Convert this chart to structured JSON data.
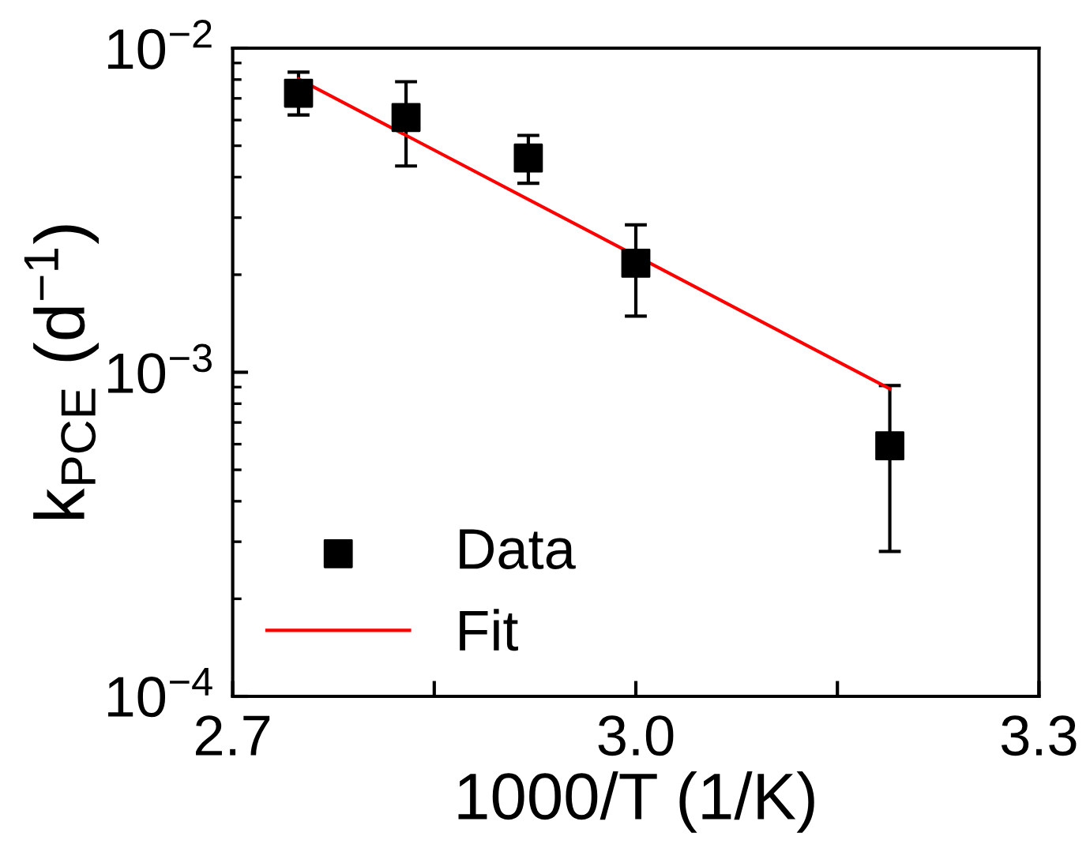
{
  "chart_data": {
    "type": "scatter",
    "xlabel": "1000/T (1/K)",
    "ylabel": "k$_{PCE}$ (d$^{−1}$)",
    "log": "y",
    "xlim": [
      2.7,
      3.3
    ],
    "xticks": [
      {
        "value": 2.7,
        "label": "2.7"
      },
      {
        "value": 2.85,
        "label": null
      },
      {
        "value": 3.0,
        "label": "3.0"
      },
      {
        "value": 3.15,
        "label": null
      },
      {
        "value": 3.3,
        "label": "3.3"
      }
    ],
    "ylim": [
      0.0001,
      0.01
    ],
    "yticks": [
      {
        "value": 0.0001,
        "label": "10$^{−4}$"
      },
      {
        "value": 0.001,
        "label": "10$^{−3}$"
      },
      {
        "value": 0.01,
        "label": "10$^{−2}$"
      }
    ],
    "grid": false,
    "legend": "bottom left",
    "series": [
      {
        "name": "Data",
        "color": "#000000",
        "marker": "square",
        "x": [
          2.749,
          2.829,
          2.92,
          3.0,
          3.189
        ],
        "values": [
          0.00726,
          0.00611,
          0.00458,
          0.00217,
          0.000593
        ],
        "errors": [
          [
            0.00622,
            0.00843
          ],
          [
            0.00433,
            0.00788
          ],
          [
            0.00383,
            0.00538
          ],
          [
            0.00149,
            0.00285
          ],
          [
            0.00028,
            0.00091
          ]
        ]
      },
      {
        "name": "Fit",
        "type": "line",
        "color": "#ff0000",
        "marker": "none",
        "line_style": "solid",
        "x": [
          2.749,
          3.189
        ],
        "values": [
          0.00803,
          0.000889
        ]
      }
    ]
  }
}
